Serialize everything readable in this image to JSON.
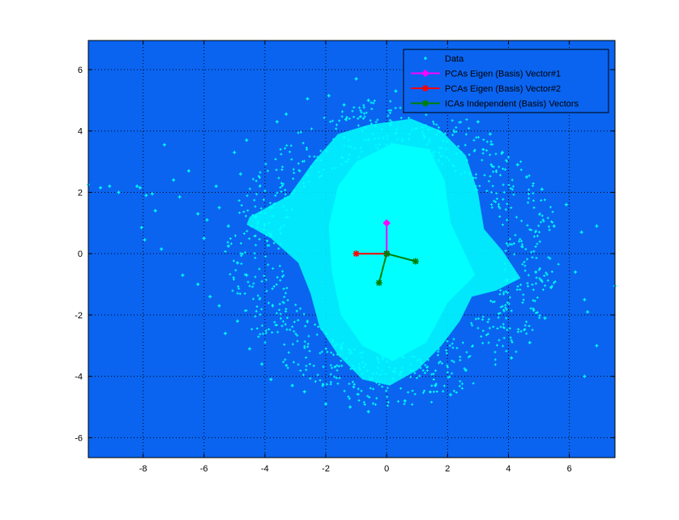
{
  "chart_data": {
    "type": "scatter",
    "title": "",
    "xlabel": "",
    "ylabel": "",
    "xlim": [
      -9.8,
      7.5
    ],
    "ylim": [
      -6.65,
      6.95
    ],
    "x_ticks": [
      -8,
      -6,
      -4,
      -2,
      0,
      2,
      4,
      6
    ],
    "x_tick_labels": [
      "-8",
      "-6",
      "-4",
      "-2",
      "0",
      "2",
      "4",
      "6"
    ],
    "y_ticks": [
      -6,
      -4,
      -2,
      0,
      2,
      4,
      6
    ],
    "y_tick_labels": [
      "-6",
      "-4",
      "-2",
      "0",
      "2",
      "4",
      "6"
    ],
    "grid": true,
    "legend_position": "top-right",
    "axes_background": "#0a64f0",
    "series": [
      {
        "name": "Data",
        "kind": "scatter",
        "color": "#00ffff",
        "marker": "+",
        "points": [
          [
            -9.8,
            2.25
          ],
          [
            -9.4,
            2.15
          ],
          [
            -9.1,
            2.2
          ],
          [
            -8.8,
            2.0
          ],
          [
            -8.2,
            2.2
          ],
          [
            -8.1,
            2.15
          ],
          [
            -7.9,
            1.9
          ],
          [
            -7.7,
            1.95
          ],
          [
            -7.6,
            1.4
          ],
          [
            -7.4,
            0.15
          ],
          [
            -7.3,
            3.55
          ],
          [
            -7.0,
            2.4
          ],
          [
            -6.8,
            1.85
          ],
          [
            -6.5,
            2.7
          ],
          [
            -6.2,
            1.3
          ],
          [
            -6.0,
            0.5
          ],
          [
            -5.9,
            1.1
          ],
          [
            -5.5,
            1.5
          ],
          [
            -5.6,
            2.2
          ],
          [
            -5.2,
            0.9
          ],
          [
            -5.0,
            3.3
          ],
          [
            -4.8,
            2.6
          ],
          [
            -4.6,
            3.7
          ],
          [
            -4.3,
            1.2
          ],
          [
            -8.05,
            0.85
          ],
          [
            -7.95,
            0.45
          ],
          [
            -6.7,
            -0.7
          ],
          [
            -6.2,
            -1.0
          ],
          [
            -5.8,
            -1.4
          ],
          [
            -5.5,
            -1.7
          ],
          [
            -5.3,
            -2.6
          ],
          [
            -4.9,
            -2.2
          ],
          [
            -4.5,
            -3.1
          ],
          [
            -4.1,
            -3.6
          ],
          [
            -3.8,
            -4.1
          ],
          [
            -3.6,
            4.3
          ],
          [
            -3.3,
            4.55
          ],
          [
            -2.6,
            5.05
          ],
          [
            -1.9,
            5.15
          ],
          [
            -1.4,
            4.85
          ],
          [
            -1.0,
            5.7
          ],
          [
            -0.6,
            5.0
          ],
          [
            0.3,
            5.3
          ],
          [
            1.3,
            4.9
          ],
          [
            1.9,
            4.7
          ],
          [
            3.0,
            4.3
          ],
          [
            3.4,
            3.9
          ],
          [
            3.8,
            3.3
          ],
          [
            4.3,
            2.9
          ],
          [
            4.6,
            2.5
          ],
          [
            5.1,
            2.1
          ],
          [
            5.5,
            0.9
          ],
          [
            5.9,
            1.6
          ],
          [
            6.4,
            0.7
          ],
          [
            6.9,
            0.9
          ],
          [
            6.2,
            -0.6
          ],
          [
            6.5,
            -1.5
          ],
          [
            6.6,
            -1.9
          ],
          [
            6.9,
            -3.0
          ],
          [
            6.5,
            -4.0
          ],
          [
            7.5,
            -1.05
          ],
          [
            5.2,
            -2.1
          ],
          [
            4.7,
            -2.9
          ],
          [
            4.1,
            -3.4
          ],
          [
            2.6,
            -3.8
          ],
          [
            2.1,
            -4.6
          ],
          [
            1.6,
            -4.3
          ],
          [
            0.6,
            -4.8
          ],
          [
            -0.6,
            -5.15
          ],
          [
            -1.2,
            -5.0
          ],
          [
            -2.0,
            -4.9
          ],
          [
            -2.7,
            -4.5
          ],
          [
            -3.1,
            -4.3
          ],
          [
            -4.6,
            -0.7
          ],
          [
            -4.9,
            -0.3
          ],
          [
            -5.2,
            0.25
          ],
          [
            4.9,
            -0.6
          ],
          [
            5.4,
            -1.1
          ]
        ]
      },
      {
        "name": "PCAs Eigen (Basis) Vector#1",
        "kind": "vector",
        "color": "#ff00ff",
        "marker": "diamond",
        "points": [
          [
            0,
            0
          ],
          [
            0,
            1
          ]
        ]
      },
      {
        "name": "PCAs Eigen (Basis) Vector#2",
        "kind": "vector",
        "color": "#ff0000",
        "marker": "star",
        "points": [
          [
            0,
            0
          ],
          [
            -1,
            0
          ]
        ]
      },
      {
        "name": "ICAs Independent (Basis) Vectors",
        "kind": "vector",
        "color": "#008000",
        "marker": "star",
        "points": [
          [
            0,
            0
          ],
          [
            0.95,
            -0.25
          ],
          [
            0,
            0
          ],
          [
            -0.25,
            -0.95
          ]
        ]
      }
    ]
  }
}
